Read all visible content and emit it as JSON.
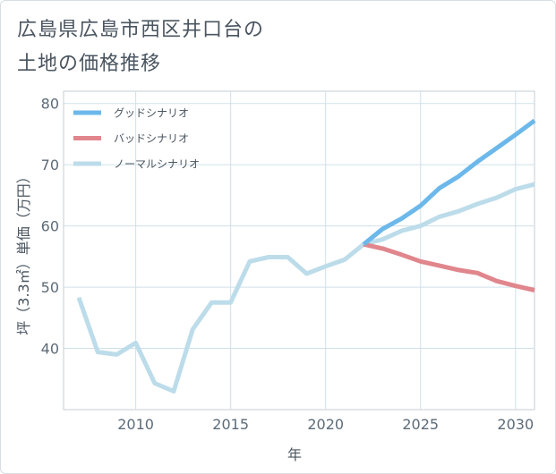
{
  "title_line1": "広島県広島市西区井口台の",
  "title_line2": "土地の価格推移",
  "chart_data": {
    "type": "line",
    "xlabel": "年",
    "ylabel": "坪（3.3㎡）単価（万円）",
    "xlim": [
      2006.2,
      2031
    ],
    "ylim": [
      30,
      82
    ],
    "xticks": [
      2010,
      2015,
      2020,
      2025,
      2030
    ],
    "yticks": [
      40,
      50,
      60,
      70,
      80
    ],
    "grid": true,
    "legend_position": "top-left",
    "series": [
      {
        "name": "グッドシナリオ",
        "color": "#6cb8ea",
        "x": [
          2022,
          2023,
          2024,
          2025,
          2026,
          2027,
          2028,
          2029,
          2030,
          2031
        ],
        "values": [
          57.0,
          59.5,
          61.2,
          63.3,
          66.2,
          68.1,
          70.5,
          72.7,
          74.9,
          77.2
        ]
      },
      {
        "name": "バッドシナリオ",
        "color": "#e0868c",
        "x": [
          2022,
          2023,
          2024,
          2025,
          2026,
          2027,
          2028,
          2029,
          2030,
          2031
        ],
        "values": [
          57.0,
          56.3,
          55.3,
          54.2,
          53.5,
          52.8,
          52.3,
          51.0,
          50.2,
          49.5
        ]
      },
      {
        "name": "ノーマルシナリオ",
        "color": "#bcdcea",
        "x": [
          2007,
          2008,
          2009,
          2010,
          2011,
          2012,
          2013,
          2014,
          2015,
          2016,
          2017,
          2018,
          2019,
          2020,
          2021,
          2022,
          2023,
          2024,
          2025,
          2026,
          2027,
          2028,
          2029,
          2030,
          2031
        ],
        "values": [
          48.3,
          39.4,
          39.0,
          40.9,
          34.3,
          33.0,
          43.1,
          47.5,
          47.5,
          54.2,
          54.9,
          54.9,
          52.2,
          53.4,
          54.5,
          57.0,
          57.8,
          59.2,
          60.0,
          61.5,
          62.4,
          63.6,
          64.6,
          66.0,
          66.8
        ]
      }
    ]
  }
}
